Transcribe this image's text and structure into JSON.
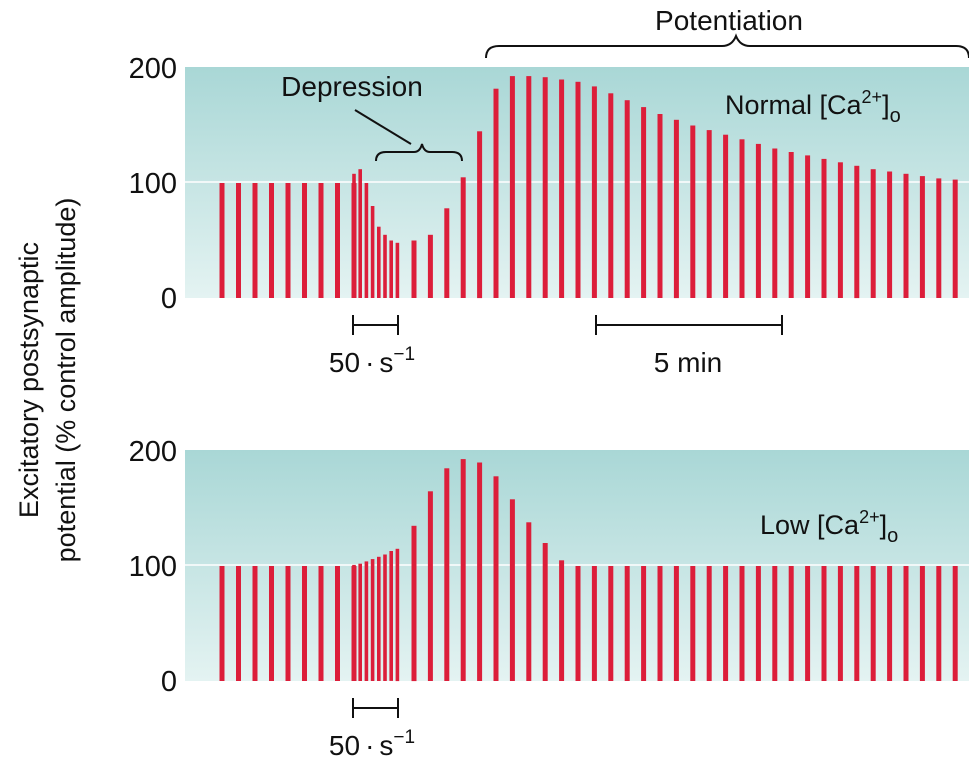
{
  "ylabel_lines": [
    "Excitatory postsynaptic",
    "potential (% control amplitude)"
  ],
  "colors": {
    "bar": "#dc1e3a",
    "band_top": "#a9d7d6",
    "band_bottom": "#e4f3f2",
    "gridline": "#ffffff",
    "text": "#111111"
  },
  "chart_data": [
    {
      "type": "bar",
      "panel": "top",
      "condition_label": {
        "prefix": "Normal [Ca",
        "sup": "2+",
        "suffix": "]",
        "sub": "o"
      },
      "ylim": [
        0,
        200
      ],
      "yticks": [
        0,
        100,
        200
      ],
      "grid_at": 100,
      "annotations": {
        "potentiation": "Potentiation",
        "depression": "Depression"
      },
      "scale_bars": [
        {
          "label_number": "50",
          "label_dot": "·",
          "label_unit": "s",
          "label_exp": "−1"
        },
        {
          "label": "5 min"
        }
      ],
      "values": [
        100,
        100,
        100,
        100,
        100,
        100,
        100,
        100,
        100,
        108,
        112,
        100,
        80,
        62,
        55,
        50,
        48,
        50,
        55,
        78,
        105,
        145,
        182,
        193,
        193,
        192,
        190,
        188,
        184,
        178,
        172,
        166,
        160,
        155,
        150,
        146,
        142,
        138,
        134,
        130,
        127,
        124,
        121,
        118,
        115,
        112,
        110,
        108,
        106,
        104,
        103
      ]
    },
    {
      "type": "bar",
      "panel": "bottom",
      "condition_label": {
        "prefix": "Low [Ca",
        "sup": "2+",
        "suffix": "]",
        "sub": "o"
      },
      "ylim": [
        0,
        200
      ],
      "yticks": [
        0,
        100,
        200
      ],
      "grid_at": 100,
      "scale_bars": [
        {
          "label_number": "50",
          "label_dot": "·",
          "label_unit": "s",
          "label_exp": "−1"
        }
      ],
      "values": [
        100,
        100,
        100,
        100,
        100,
        100,
        100,
        100,
        100,
        101,
        102,
        104,
        106,
        108,
        110,
        113,
        115,
        135,
        165,
        185,
        193,
        190,
        178,
        158,
        138,
        120,
        105,
        100,
        100,
        100,
        100,
        100,
        100,
        100,
        100,
        100,
        100,
        100,
        100,
        100,
        100,
        100,
        100,
        100,
        100,
        100,
        100,
        100,
        100,
        100,
        100
      ]
    }
  ]
}
